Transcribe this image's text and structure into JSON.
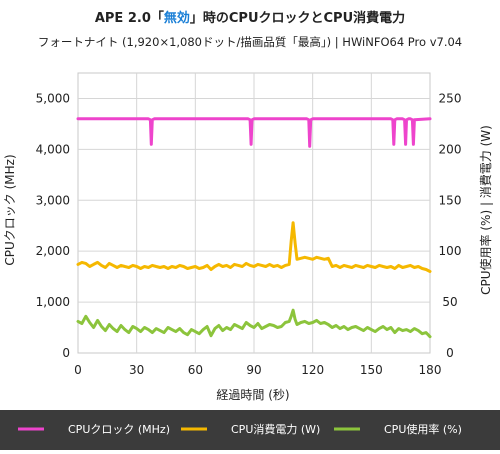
{
  "chart_data": {
    "type": "line",
    "title_prefix": "APE 2.0「",
    "title_accent": "無効",
    "title_suffix": "」時のCPUクロックとCPU消費電力",
    "subtitle": "フォートナイト (1,920×1,080ドット/描画品質「最高」) | HWiNFO64   Pro v7.04",
    "xlabel": "経過時間 (秒)",
    "ylabel_left": "CPUクロック (MHz)",
    "ylabel_right": "CPU使用率 (%) | 消費電力 (W)",
    "xlim": [
      0,
      180
    ],
    "ylim_left": [
      0,
      5500
    ],
    "ylim_right": [
      0,
      275
    ],
    "x_ticks": [
      "0",
      "30",
      "60",
      "90",
      "120",
      "150",
      "180"
    ],
    "y_left_ticks": [
      "0",
      "1,000",
      "2,000",
      "3,000",
      "4,000",
      "5,000"
    ],
    "y_right_ticks": [
      "0",
      "50",
      "100",
      "150",
      "200",
      "250"
    ],
    "grid": true,
    "legend_position": "bottom",
    "series": [
      {
        "name": "CPUクロック (MHz)",
        "axis": "left",
        "color": "#ee44cc",
        "x": [
          0,
          36,
          37,
          37.5,
          38,
          39,
          87,
          88,
          88.5,
          89,
          90,
          117,
          118,
          118.5,
          119,
          120,
          160,
          161,
          161.5,
          162,
          163,
          166,
          167,
          167.5,
          168,
          169,
          170,
          171,
          171.5,
          172,
          180
        ],
        "values": [
          4600,
          4600,
          4580,
          4100,
          4580,
          4600,
          4600,
          4580,
          4100,
          4580,
          4600,
          4600,
          4580,
          4060,
          4580,
          4600,
          4600,
          4580,
          4100,
          4580,
          4600,
          4600,
          4580,
          4100,
          4580,
          4600,
          4600,
          4580,
          4100,
          4580,
          4600
        ]
      },
      {
        "name": "CPU消費電力 (W)",
        "axis": "right",
        "color": "#f5b800",
        "x": [
          0,
          2,
          4,
          6,
          8,
          10,
          12,
          14,
          16,
          18,
          20,
          22,
          24,
          26,
          28,
          30,
          32,
          34,
          36,
          38,
          40,
          42,
          44,
          46,
          48,
          50,
          52,
          54,
          56,
          58,
          60,
          62,
          64,
          66,
          68,
          70,
          72,
          74,
          76,
          78,
          80,
          82,
          84,
          86,
          88,
          90,
          92,
          94,
          96,
          98,
          100,
          102,
          104,
          106,
          108,
          109,
          110,
          111,
          112,
          114,
          116,
          118,
          120,
          122,
          124,
          126,
          128,
          130,
          132,
          134,
          136,
          138,
          140,
          142,
          144,
          146,
          148,
          150,
          152,
          154,
          156,
          158,
          160,
          162,
          164,
          166,
          168,
          170,
          172,
          174,
          176,
          178,
          180
        ],
        "values": [
          87,
          89,
          88,
          85,
          87,
          89,
          86,
          84,
          88,
          86,
          84,
          86,
          85,
          84,
          86,
          85,
          83,
          85,
          84,
          86,
          85,
          84,
          85,
          83,
          85,
          84,
          86,
          85,
          83,
          84,
          85,
          83,
          84,
          86,
          82,
          85,
          87,
          85,
          86,
          84,
          87,
          86,
          85,
          88,
          86,
          85,
          87,
          86,
          85,
          87,
          85,
          86,
          84,
          86,
          87,
          110,
          128,
          108,
          92,
          93,
          94,
          93,
          92,
          94,
          93,
          92,
          93,
          85,
          86,
          84,
          86,
          85,
          84,
          86,
          85,
          84,
          86,
          85,
          84,
          86,
          85,
          84,
          85,
          83,
          86,
          84,
          85,
          86,
          84,
          85,
          83,
          82,
          80
        ]
      },
      {
        "name": "CPU使用率 (%)",
        "axis": "right",
        "color": "#8cc43c",
        "x": [
          0,
          2,
          4,
          6,
          8,
          10,
          12,
          14,
          16,
          18,
          20,
          22,
          24,
          26,
          28,
          30,
          32,
          34,
          36,
          38,
          40,
          42,
          44,
          46,
          48,
          50,
          52,
          54,
          56,
          58,
          60,
          62,
          64,
          66,
          68,
          70,
          72,
          74,
          76,
          78,
          80,
          82,
          84,
          86,
          88,
          90,
          92,
          94,
          96,
          98,
          100,
          102,
          104,
          106,
          108,
          109,
          110,
          111,
          112,
          114,
          116,
          118,
          120,
          122,
          124,
          126,
          128,
          130,
          132,
          134,
          136,
          138,
          140,
          142,
          144,
          146,
          148,
          150,
          152,
          154,
          156,
          158,
          160,
          162,
          164,
          166,
          168,
          170,
          172,
          174,
          176,
          178,
          180
        ],
        "values": [
          31,
          29,
          36,
          30,
          25,
          32,
          26,
          22,
          28,
          24,
          21,
          27,
          23,
          20,
          26,
          24,
          21,
          25,
          23,
          20,
          24,
          22,
          20,
          25,
          23,
          21,
          24,
          20,
          18,
          23,
          21,
          19,
          23,
          26,
          17,
          24,
          27,
          22,
          25,
          23,
          28,
          26,
          24,
          30,
          27,
          25,
          29,
          24,
          26,
          28,
          27,
          25,
          26,
          30,
          31,
          36,
          42,
          33,
          28,
          30,
          31,
          29,
          30,
          32,
          29,
          30,
          28,
          25,
          27,
          24,
          26,
          23,
          25,
          26,
          24,
          22,
          25,
          23,
          21,
          24,
          26,
          23,
          25,
          20,
          24,
          22,
          23,
          21,
          24,
          22,
          19,
          20,
          16
        ]
      }
    ]
  }
}
